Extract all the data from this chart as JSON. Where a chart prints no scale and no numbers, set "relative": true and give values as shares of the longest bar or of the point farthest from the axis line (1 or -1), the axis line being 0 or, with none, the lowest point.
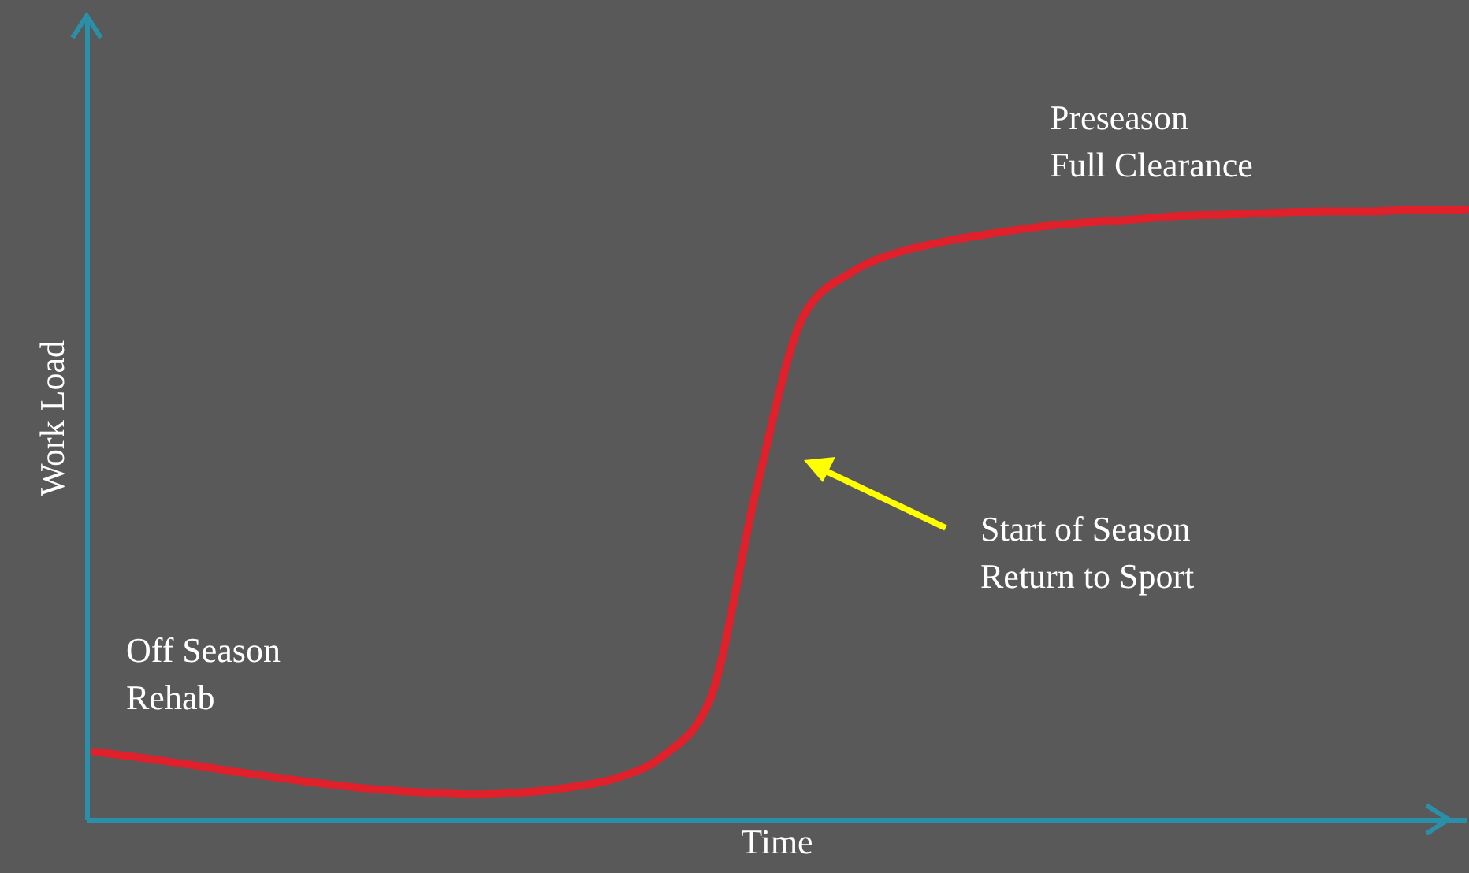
{
  "chart_data": {
    "type": "line",
    "relative": true,
    "xlabel": "Time",
    "ylabel": "Work Load",
    "tick_labels": false,
    "color": "#e0202a",
    "line_style": "solid",
    "categories": [
      null,
      null,
      null,
      null,
      null,
      null,
      null,
      null,
      null,
      null,
      null,
      null,
      null,
      null,
      null,
      null,
      null,
      null,
      null,
      null,
      null,
      null,
      null,
      null,
      null,
      null,
      null,
      null,
      null,
      null
    ],
    "values": [
      0.111,
      0.101,
      0.09,
      0.078,
      0.067,
      0.057,
      0.049,
      0.044,
      0.041,
      0.044,
      0.052,
      0.067,
      0.103,
      0.194,
      0.543,
      0.827,
      0.897,
      0.93,
      0.948,
      0.961,
      0.972,
      0.979,
      0.984,
      0.99,
      0.992,
      0.995,
      0.997,
      0.997,
      1,
      1
    ],
    "annotations": [
      "Off Season\nRehab",
      "Preseason\nFull Clearance",
      "Start of Season\nReturn to Sport"
    ]
  }
}
